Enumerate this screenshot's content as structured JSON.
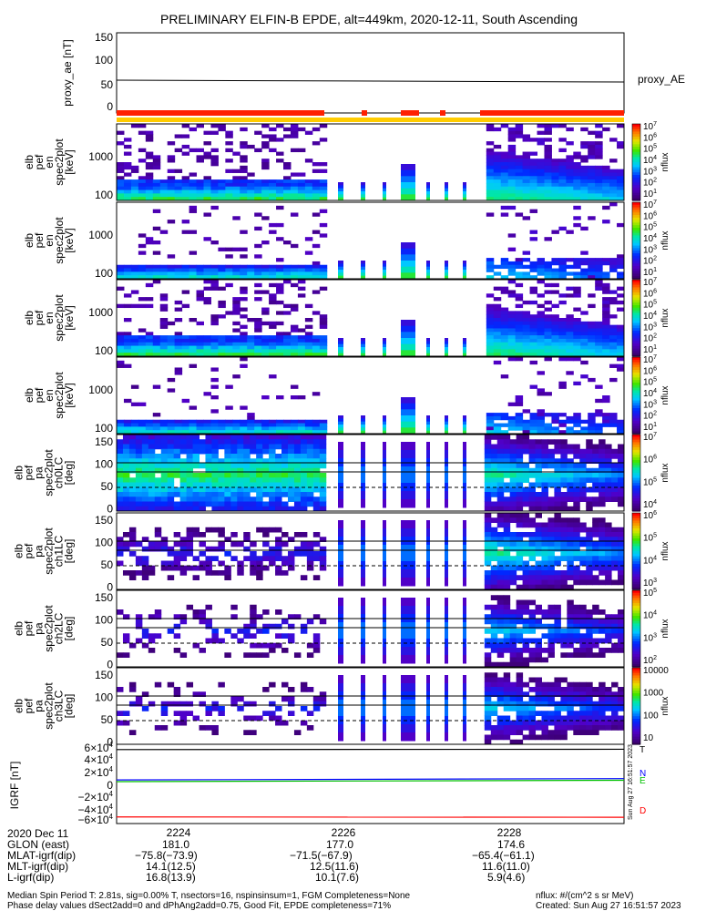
{
  "chart_data": {
    "title": "PRELIMINARY ELFIN-B EPDE, alt=449km, 2020-12-11, South Ascending",
    "type": "heatmap",
    "time_axis": {
      "ticks": [
        "2224",
        "2226",
        "2228"
      ]
    },
    "proxy_ae": {
      "type": "line",
      "ylabel": "proxy_ae [nT]",
      "legend": "proxy_AE",
      "ylim": [
        -10,
        150
      ],
      "yticks": [
        "150",
        "100",
        "50",
        "0"
      ],
      "x": [
        "2223.0",
        "2229.4"
      ],
      "values": [
        55,
        51
      ]
    },
    "spectra": [
      {
        "ylabel": [
          "elb",
          "pef",
          "en",
          "spec2plot",
          "[keV]"
        ],
        "yticks": [
          "1000",
          "100"
        ],
        "cbar": "nflux",
        "cbar_ticks": [
          "10^7",
          "10^6",
          "10^5",
          "10^4",
          "10^3",
          "10^2",
          "10^1"
        ]
      },
      {
        "ylabel": [
          "elb",
          "pef",
          "en",
          "spec2plot",
          "[keV]"
        ],
        "yticks": [
          "1000",
          "100"
        ],
        "cbar": "nflux",
        "cbar_ticks": [
          "10^7",
          "10^6",
          "10^5",
          "10^4",
          "10^3",
          "10^2",
          "10^1"
        ]
      },
      {
        "ylabel": [
          "elb",
          "pef",
          "en",
          "spec2plot",
          "[keV]"
        ],
        "yticks": [
          "1000",
          "100"
        ],
        "cbar": "nflux",
        "cbar_ticks": [
          "10^7",
          "10^6",
          "10^5",
          "10^4",
          "10^3",
          "10^2",
          "10^1"
        ]
      },
      {
        "ylabel": [
          "elb",
          "pef",
          "en",
          "spec2plot",
          "[keV]"
        ],
        "yticks": [
          "1000",
          "100"
        ],
        "cbar": "nflux",
        "cbar_ticks": [
          "10^7",
          "10^6",
          "10^5",
          "10^4",
          "10^3",
          "10^2",
          "10^1"
        ]
      }
    ],
    "pitch": [
      {
        "ylabel": [
          "elb",
          "pef",
          "pa",
          "spec2plot",
          "ch0LC",
          "[deg]"
        ],
        "yticks": [
          "150",
          "100",
          "50",
          "0"
        ],
        "cbar": "nflux",
        "cbar_ticks": [
          "10^7",
          "10^6",
          "10^5",
          "10^4"
        ]
      },
      {
        "ylabel": [
          "elb",
          "pef",
          "pa",
          "spec2plot",
          "ch1LC",
          "[deg]"
        ],
        "yticks": [
          "150",
          "100",
          "50",
          "0"
        ],
        "cbar": "nflux",
        "cbar_ticks": [
          "10^6",
          "10^5",
          "10^4",
          "10^3"
        ]
      },
      {
        "ylabel": [
          "elb",
          "pef",
          "pa",
          "spec2plot",
          "ch2LC",
          "[deg]"
        ],
        "yticks": [
          "150",
          "100",
          "50",
          "0"
        ],
        "cbar": "nflux",
        "cbar_ticks": [
          "10^5",
          "10^4",
          "10^3",
          "10^2"
        ]
      },
      {
        "ylabel": [
          "elb",
          "pef",
          "pa",
          "spec2plot",
          "ch3LC",
          "[deg]"
        ],
        "yticks": [
          "150",
          "100",
          "50",
          "0"
        ],
        "cbar": "nflux",
        "cbar_ticks": [
          "10000",
          "1000",
          "100",
          "10"
        ]
      }
    ],
    "igrf": {
      "type": "line",
      "ylabel": "IGRF [nT]",
      "yticks": [
        "6×10^4",
        "4×10^4",
        "2×10^4",
        "0",
        "−2×10^4",
        "−4×10^4",
        "−6×10^4"
      ],
      "ylim": [
        -60000,
        60000
      ],
      "series": [
        {
          "name": "T",
          "color": "#000000",
          "values": [
            52000,
            52500
          ]
        },
        {
          "name": "N",
          "color": "#0000ff",
          "values": [
            6000,
            8000
          ]
        },
        {
          "name": "E",
          "color": "#00c000",
          "values": [
            3500,
            5500
          ]
        },
        {
          "name": "D",
          "color": "#ff0000",
          "values": [
            -50000,
            -50500
          ]
        }
      ],
      "rotated_label": "Sun Aug 27 16:51:57 2023"
    }
  },
  "table": {
    "rows": [
      {
        "label": "2020 Dec 11",
        "v": [
          "2224",
          "2226",
          "2228"
        ]
      },
      {
        "label": "GLON (east)",
        "v": [
          "181.0",
          "177.0",
          "174.6"
        ]
      },
      {
        "label": "MLAT-igrf(dip)",
        "v": [
          "−75.8(−73.9)",
          "−71.5(−67.9)",
          "−65.4(−61.1)"
        ]
      },
      {
        "label": "MLT-igrf(dip)",
        "v": [
          "14.1(12.5)",
          "12.5(11.6)",
          "11.6(11.0)"
        ]
      },
      {
        "label": "L-igrf(dip)",
        "v": [
          "16.8(13.9)",
          "10.1(7.6)",
          "5.9(4.6)"
        ]
      }
    ]
  },
  "footer": {
    "line1": "Median Spin Period T: 2.81s, sig=0.00% T, nsectors=16, nspinsinsum=1, FGM Completeness=None",
    "line2": "Phase delay values dSect2add=0 and dPhAng2add=0.75, Good Fit, EPDE completeness=71%",
    "units": "nflux: #/(cm^2 s sr MeV)",
    "created": "Created: Sun Aug 27 16:51:57 2023"
  },
  "colors": {
    "red_bar": "#ff2000",
    "yellow_bar": "#ffcc00"
  }
}
